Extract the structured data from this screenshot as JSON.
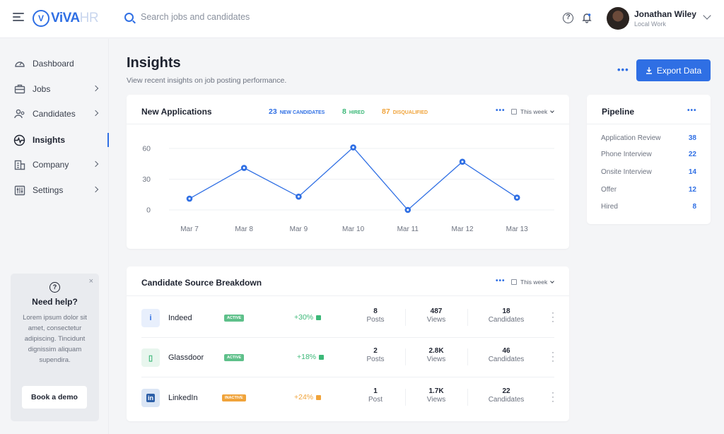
{
  "brand": {
    "name_main": "ViVA",
    "name_suffix": "HR",
    "mark": "V"
  },
  "search": {
    "placeholder": "Search jobs and candidates"
  },
  "user": {
    "name": "Jonathan Wiley",
    "role": "Local Work"
  },
  "sidebar": {
    "items": [
      {
        "label": "Dashboard",
        "icon": "gauge-icon",
        "active": false,
        "has_chevron": false
      },
      {
        "label": "Jobs",
        "icon": "briefcase-icon",
        "active": false,
        "has_chevron": true
      },
      {
        "label": "Candidates",
        "icon": "people-icon",
        "active": false,
        "has_chevron": true
      },
      {
        "label": "Insights",
        "icon": "pulse-icon",
        "active": true,
        "has_chevron": false
      },
      {
        "label": "Company",
        "icon": "building-icon",
        "active": false,
        "has_chevron": true
      },
      {
        "label": "Settings",
        "icon": "sliders-icon",
        "active": false,
        "has_chevron": true
      }
    ]
  },
  "help_card": {
    "title": "Need help?",
    "text": "Lorem ipsum dolor sit amet, consectetur adipiscing. Tincidunt dignissim aliquam supendira.",
    "button": "Book a demo",
    "close": "×",
    "icon": "?"
  },
  "header": {
    "title": "Insights",
    "subtitle": "View recent insights on job posting performance.",
    "more": "•••",
    "export_label": "Export Data"
  },
  "new_applications": {
    "title": "New Applications",
    "stats": [
      {
        "value": "23",
        "label": "NEW CANDIDATES",
        "color": "#2f6fe4"
      },
      {
        "value": "8",
        "label": "HIRED",
        "color": "#3cb878"
      },
      {
        "value": "87",
        "label": "DISQUALIFIED",
        "color": "#f0a33a"
      }
    ],
    "more": "•••",
    "period": "This week"
  },
  "chart_data": {
    "type": "line",
    "categories": [
      "Mar 7",
      "Mar 8",
      "Mar 9",
      "Mar 10",
      "Mar 11",
      "Mar 12",
      "Mar 13"
    ],
    "series": [
      {
        "values": [
          11,
          41,
          13,
          61,
          0,
          47,
          12
        ]
      }
    ],
    "yticks": [
      0,
      30,
      60
    ],
    "ylim": [
      0,
      60
    ],
    "grid": true,
    "color": "#2f6fe4"
  },
  "pipeline": {
    "title": "Pipeline",
    "more": "•••",
    "items": [
      {
        "label": "Application Review",
        "value": "38"
      },
      {
        "label": "Phone Interview",
        "value": "22"
      },
      {
        "label": "Onsite Interview",
        "value": "14"
      },
      {
        "label": "Offer",
        "value": "12"
      },
      {
        "label": "Hired",
        "value": "8"
      }
    ]
  },
  "sources": {
    "title": "Candidate Source Breakdown",
    "more": "•••",
    "period": "This week",
    "rows": [
      {
        "name": "Indeed",
        "logo": "i",
        "logo_color": "#2f6fe4",
        "logo_bg": "#e8effc",
        "status": "ACTIVE",
        "status_color": "#5ec08a",
        "trend": "+30%",
        "trend_color": "#3cb878",
        "posts": "8",
        "posts_label": "Posts",
        "views": "487",
        "views_label": "Views",
        "candidates": "18",
        "candidates_label": "Candidates"
      },
      {
        "name": "Glassdoor",
        "logo": "▯",
        "logo_color": "#3cb878",
        "logo_bg": "#e8f6ee",
        "status": "ACTIVE",
        "status_color": "#5ec08a",
        "trend": "+18%",
        "trend_color": "#3cb878",
        "posts": "2",
        "posts_label": "Posts",
        "views": "2.8K",
        "views_label": "Views",
        "candidates": "46",
        "candidates_label": "Candidates"
      },
      {
        "name": "LinkedIn",
        "logo": "in",
        "logo_color": "#ffffff",
        "logo_bg": "#2c5fa8",
        "status": "INACTIVE",
        "status_color": "#f0a33a",
        "trend": "+24%",
        "trend_color": "#f0a33a",
        "posts": "1",
        "posts_label": "Post",
        "views": "1.7K",
        "views_label": "Views",
        "candidates": "22",
        "candidates_label": "Candidates"
      }
    ]
  }
}
